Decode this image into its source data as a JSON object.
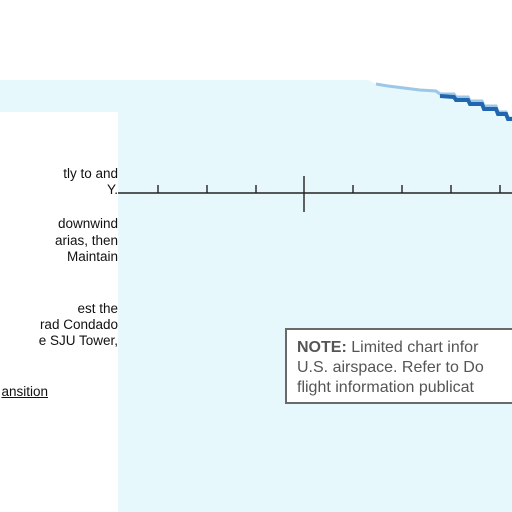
{
  "colors": {
    "water": "#e6f8fc",
    "coastline_dark": "#2166b0",
    "coastline_light": "#9cc7e6",
    "scale_line": "#222222",
    "note_border": "#6a6a6a",
    "note_text": "#555555"
  },
  "procedure_text": {
    "paragraph_1": [
      "tly to and",
      "Y."
    ],
    "paragraph_2": [
      "downwind",
      "arias, then",
      "Maintain"
    ],
    "paragraph_3": [
      "est the",
      "rad Condado",
      "e SJU Tower,"
    ],
    "transition_link": "ansition"
  },
  "note": {
    "label": "NOTE:",
    "line_1": "Limited chart infor",
    "line_2": "U.S. airspace. Refer to Do",
    "line_3": "flight information publicat"
  }
}
